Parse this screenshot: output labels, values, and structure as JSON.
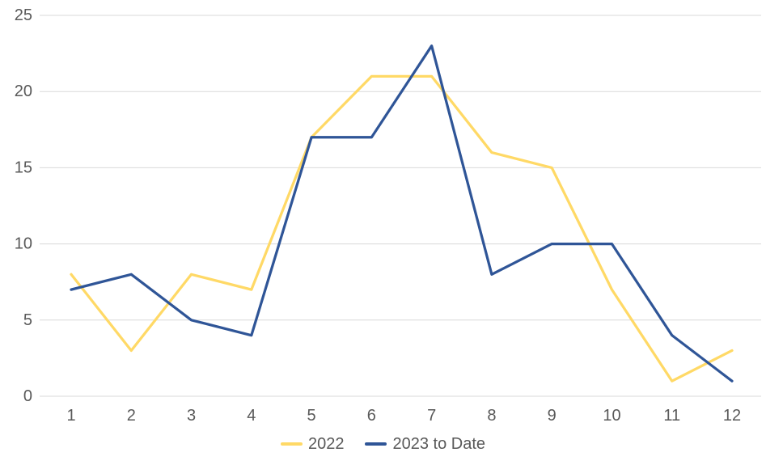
{
  "chart_data": {
    "type": "line",
    "title": "",
    "xlabel": "",
    "ylabel": "",
    "categories": [
      "1",
      "2",
      "3",
      "4",
      "5",
      "6",
      "7",
      "8",
      "9",
      "10",
      "11",
      "12"
    ],
    "series": [
      {
        "name": "2022",
        "color": "#FFD966",
        "values": [
          8,
          3,
          8,
          7,
          17,
          21,
          21,
          16,
          15,
          7,
          1,
          3
        ]
      },
      {
        "name": "2023 to Date",
        "color": "#2F5597",
        "values": [
          7,
          8,
          5,
          4,
          17,
          17,
          23,
          8,
          10,
          10,
          4,
          1
        ]
      }
    ],
    "ylim": [
      0,
      25
    ],
    "y_ticks": [
      0,
      5,
      10,
      15,
      20,
      25
    ],
    "grid": "horizontal-only",
    "legend_position": "bottom-center"
  },
  "styles": {
    "background_color": "#FFFFFF",
    "gridline_color": "#D9D9D9",
    "axis_label_color": "#595959",
    "series_2022_color": "#FFD966",
    "series_2023_color": "#2F5597"
  }
}
